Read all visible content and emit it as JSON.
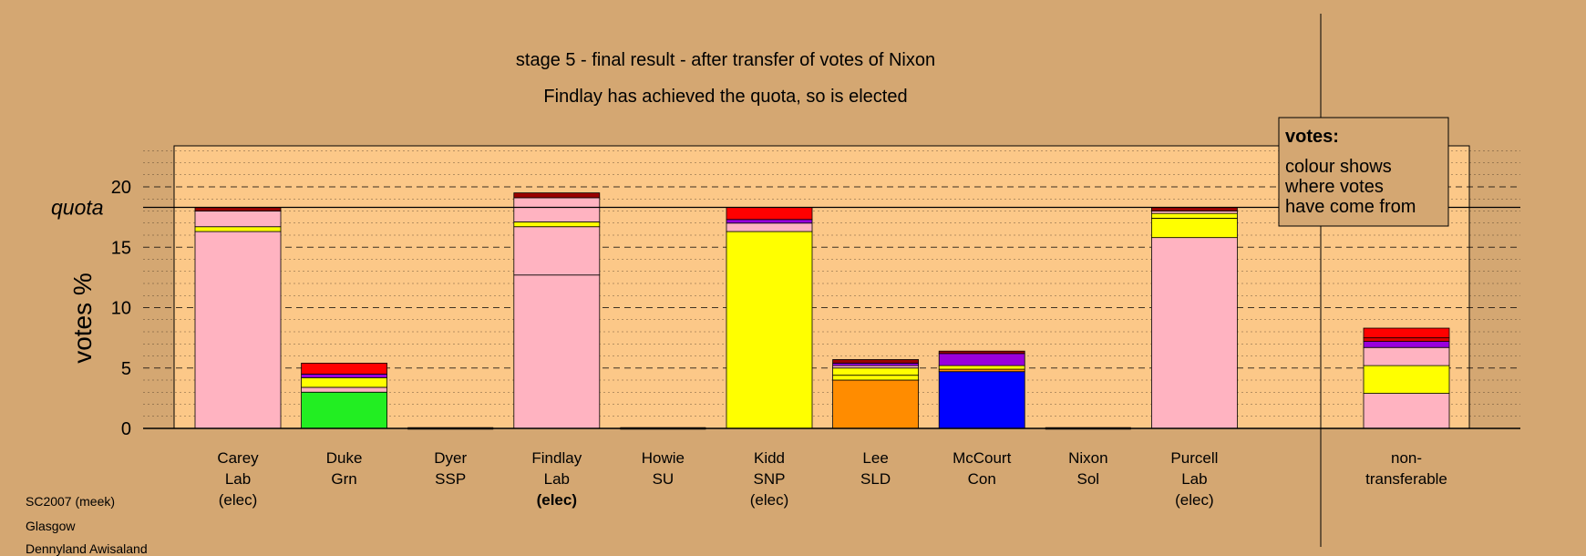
{
  "chart_data": {
    "type": "bar",
    "stacked": true,
    "title": "stage 5 - final result - after transfer of votes of Nixon",
    "subtitle": "Findlay has achieved the quota, so is elected",
    "ylabel": "votes %",
    "ylim": [
      0,
      23.5
    ],
    "yticks": [
      0,
      5,
      10,
      15,
      20
    ],
    "quota": 18.3,
    "quota_label": "quota",
    "grid": "dashed at every 5, dotted at every 1",
    "legend": {
      "heading": "votes:",
      "lines": [
        "colour shows",
        "where votes",
        "have come from"
      ],
      "placement": "top-right"
    },
    "source_colors": {
      "Lab": "#ffb3c1",
      "SNP": "#ffff00",
      "SLD": "#ff8c00",
      "Con": "#0000ff",
      "Grn": "#22ee22",
      "SSP": "#ff0000",
      "Sol": "#dd0000",
      "SU": "#9900dd",
      "Other": "#990000"
    },
    "candidates": [
      {
        "name": "Carey",
        "party": "Lab",
        "status": "(elec)",
        "bold_status": false,
        "segments": [
          {
            "source": "Lab",
            "value": 16.3
          },
          {
            "source": "SNP",
            "value": 0.4
          },
          {
            "source": "Lab",
            "value": 1.3
          },
          {
            "source": "Other",
            "value": 0.3
          }
        ]
      },
      {
        "name": "Duke",
        "party": "Grn",
        "status": "",
        "bold_status": false,
        "segments": [
          {
            "source": "Grn",
            "value": 3.0
          },
          {
            "source": "Lab",
            "value": 0.4
          },
          {
            "source": "SNP",
            "value": 0.8
          },
          {
            "source": "SU",
            "value": 0.3
          },
          {
            "source": "SSP",
            "value": 0.9
          }
        ]
      },
      {
        "name": "Dyer",
        "party": "SSP",
        "status": "",
        "bold_status": false,
        "segments": []
      },
      {
        "name": "Findlay",
        "party": "Lab",
        "status": "(elec)",
        "bold_status": true,
        "segments": [
          {
            "source": "Lab",
            "value": 12.7
          },
          {
            "source": "Lab",
            "value": 4.0
          },
          {
            "source": "SNP",
            "value": 0.4
          },
          {
            "source": "Lab",
            "value": 2.0
          },
          {
            "source": "Other",
            "value": 0.4
          }
        ]
      },
      {
        "name": "Howie",
        "party": "SU",
        "status": "",
        "bold_status": false,
        "segments": []
      },
      {
        "name": "Kidd",
        "party": "SNP",
        "status": "(elec)",
        "bold_status": false,
        "segments": [
          {
            "source": "SNP",
            "value": 16.3
          },
          {
            "source": "Lab",
            "value": 0.7
          },
          {
            "source": "SU",
            "value": 0.3
          },
          {
            "source": "SSP",
            "value": 1.0
          }
        ]
      },
      {
        "name": "Lee",
        "party": "SLD",
        "status": "",
        "bold_status": false,
        "segments": [
          {
            "source": "SLD",
            "value": 4.0
          },
          {
            "source": "SNP",
            "value": 0.4
          },
          {
            "source": "SNP",
            "value": 0.6
          },
          {
            "source": "Lab",
            "value": 0.2
          },
          {
            "source": "SU",
            "value": 0.2
          },
          {
            "source": "Other",
            "value": 0.3
          }
        ]
      },
      {
        "name": "McCourt",
        "party": "Con",
        "status": "",
        "bold_status": false,
        "segments": [
          {
            "source": "Con",
            "value": 4.7
          },
          {
            "source": "SLD",
            "value": 0.2
          },
          {
            "source": "SNP",
            "value": 0.3
          },
          {
            "source": "SU",
            "value": 1.0
          },
          {
            "source": "Other",
            "value": 0.2
          }
        ]
      },
      {
        "name": "Nixon",
        "party": "Sol",
        "status": "",
        "bold_status": false,
        "segments": []
      },
      {
        "name": "Purcell",
        "party": "Lab",
        "status": "(elec)",
        "bold_status": false,
        "segments": [
          {
            "source": "Lab",
            "value": 15.8
          },
          {
            "source": "SNP",
            "value": 1.6
          },
          {
            "source": "SNP",
            "value": 0.4
          },
          {
            "source": "Lab",
            "value": 0.2
          },
          {
            "source": "Other",
            "value": 0.3
          }
        ]
      }
    ],
    "non_transferable": {
      "label_lines": [
        "non-",
        "transferable"
      ],
      "segments": [
        {
          "source": "Lab",
          "value": 2.9
        },
        {
          "source": "SNP",
          "value": 2.3
        },
        {
          "source": "Lab",
          "value": 1.5
        },
        {
          "source": "SU",
          "value": 0.5
        },
        {
          "source": "Sol",
          "value": 0.3
        },
        {
          "source": "SSP",
          "value": 0.8
        }
      ]
    }
  },
  "footer": {
    "line1": "SC2007 (meek)",
    "line2": "Glasgow",
    "line3": "Dennyland Awisaland"
  }
}
